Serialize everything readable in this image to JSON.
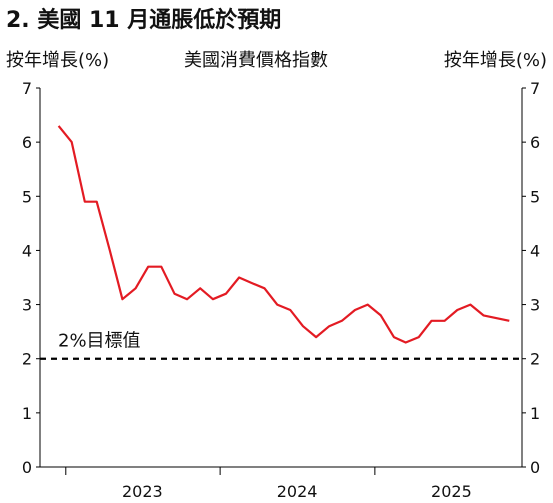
{
  "chart_data": {
    "type": "line",
    "title": "2. 美國 11 月通脹低於預期",
    "ylabel_left": "按年增長(%)",
    "subtitle": "美國消費價格指數",
    "ylabel_right": "按年增長(%)",
    "ylim": [
      0,
      7
    ],
    "yticks": [
      "0",
      "1",
      "2",
      "3",
      "4",
      "5",
      "6",
      "7"
    ],
    "xtick_labels": [
      "2023",
      "2024",
      "2025"
    ],
    "series": [
      {
        "color": "#e31b23",
        "x": [
          "2022-12",
          "2023-01",
          "2023-02",
          "2023-03",
          "2023-04",
          "2023-05",
          "2023-06",
          "2023-07",
          "2023-08",
          "2023-09",
          "2023-10",
          "2023-11",
          "2023-12",
          "2024-01",
          "2024-02",
          "2024-03",
          "2024-04",
          "2024-05",
          "2024-06",
          "2024-07",
          "2024-08",
          "2024-09",
          "2024-10",
          "2024-11",
          "2024-12",
          "2025-01",
          "2025-02",
          "2025-03",
          "2025-04",
          "2025-05",
          "2025-06",
          "2025-07",
          "2025-08",
          "2025-09",
          "2025-11"
        ],
        "values": [
          6.3,
          6.0,
          4.9,
          4.9,
          4.0,
          3.1,
          3.3,
          3.7,
          3.7,
          3.2,
          3.1,
          3.3,
          3.1,
          3.2,
          3.5,
          3.4,
          3.3,
          3.0,
          2.9,
          2.6,
          2.4,
          2.6,
          2.7,
          2.9,
          3.0,
          2.8,
          2.4,
          2.3,
          2.4,
          2.7,
          2.7,
          2.9,
          3.0,
          2.8,
          2.7
        ]
      }
    ],
    "reference_line": {
      "value": 2,
      "label": "2%目標值",
      "style": "dashed",
      "color": "#000000"
    },
    "grid": false
  }
}
